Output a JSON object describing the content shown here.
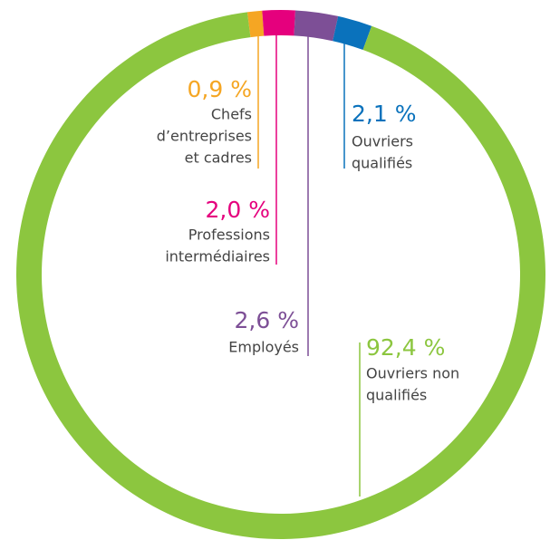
{
  "chart_data": {
    "type": "donut",
    "categories": [
      [
        "Chefs",
        "d’entreprises",
        "et cadres"
      ],
      [
        "Professions",
        "intermédiaires"
      ],
      [
        "Employés"
      ],
      [
        "Ouvriers",
        "qualifiés"
      ],
      [
        "Ouvriers non",
        "qualifiés"
      ]
    ],
    "values": [
      0.9,
      2.0,
      2.6,
      2.1,
      92.4
    ],
    "value_labels": [
      "0,9 %",
      "2,0 %",
      "2,6 %",
      "2,1 %",
      "92,4 %"
    ],
    "colors": [
      "#f5a623",
      "#e5007d",
      "#7d4f96",
      "#0a72bc",
      "#8cc63f"
    ]
  }
}
